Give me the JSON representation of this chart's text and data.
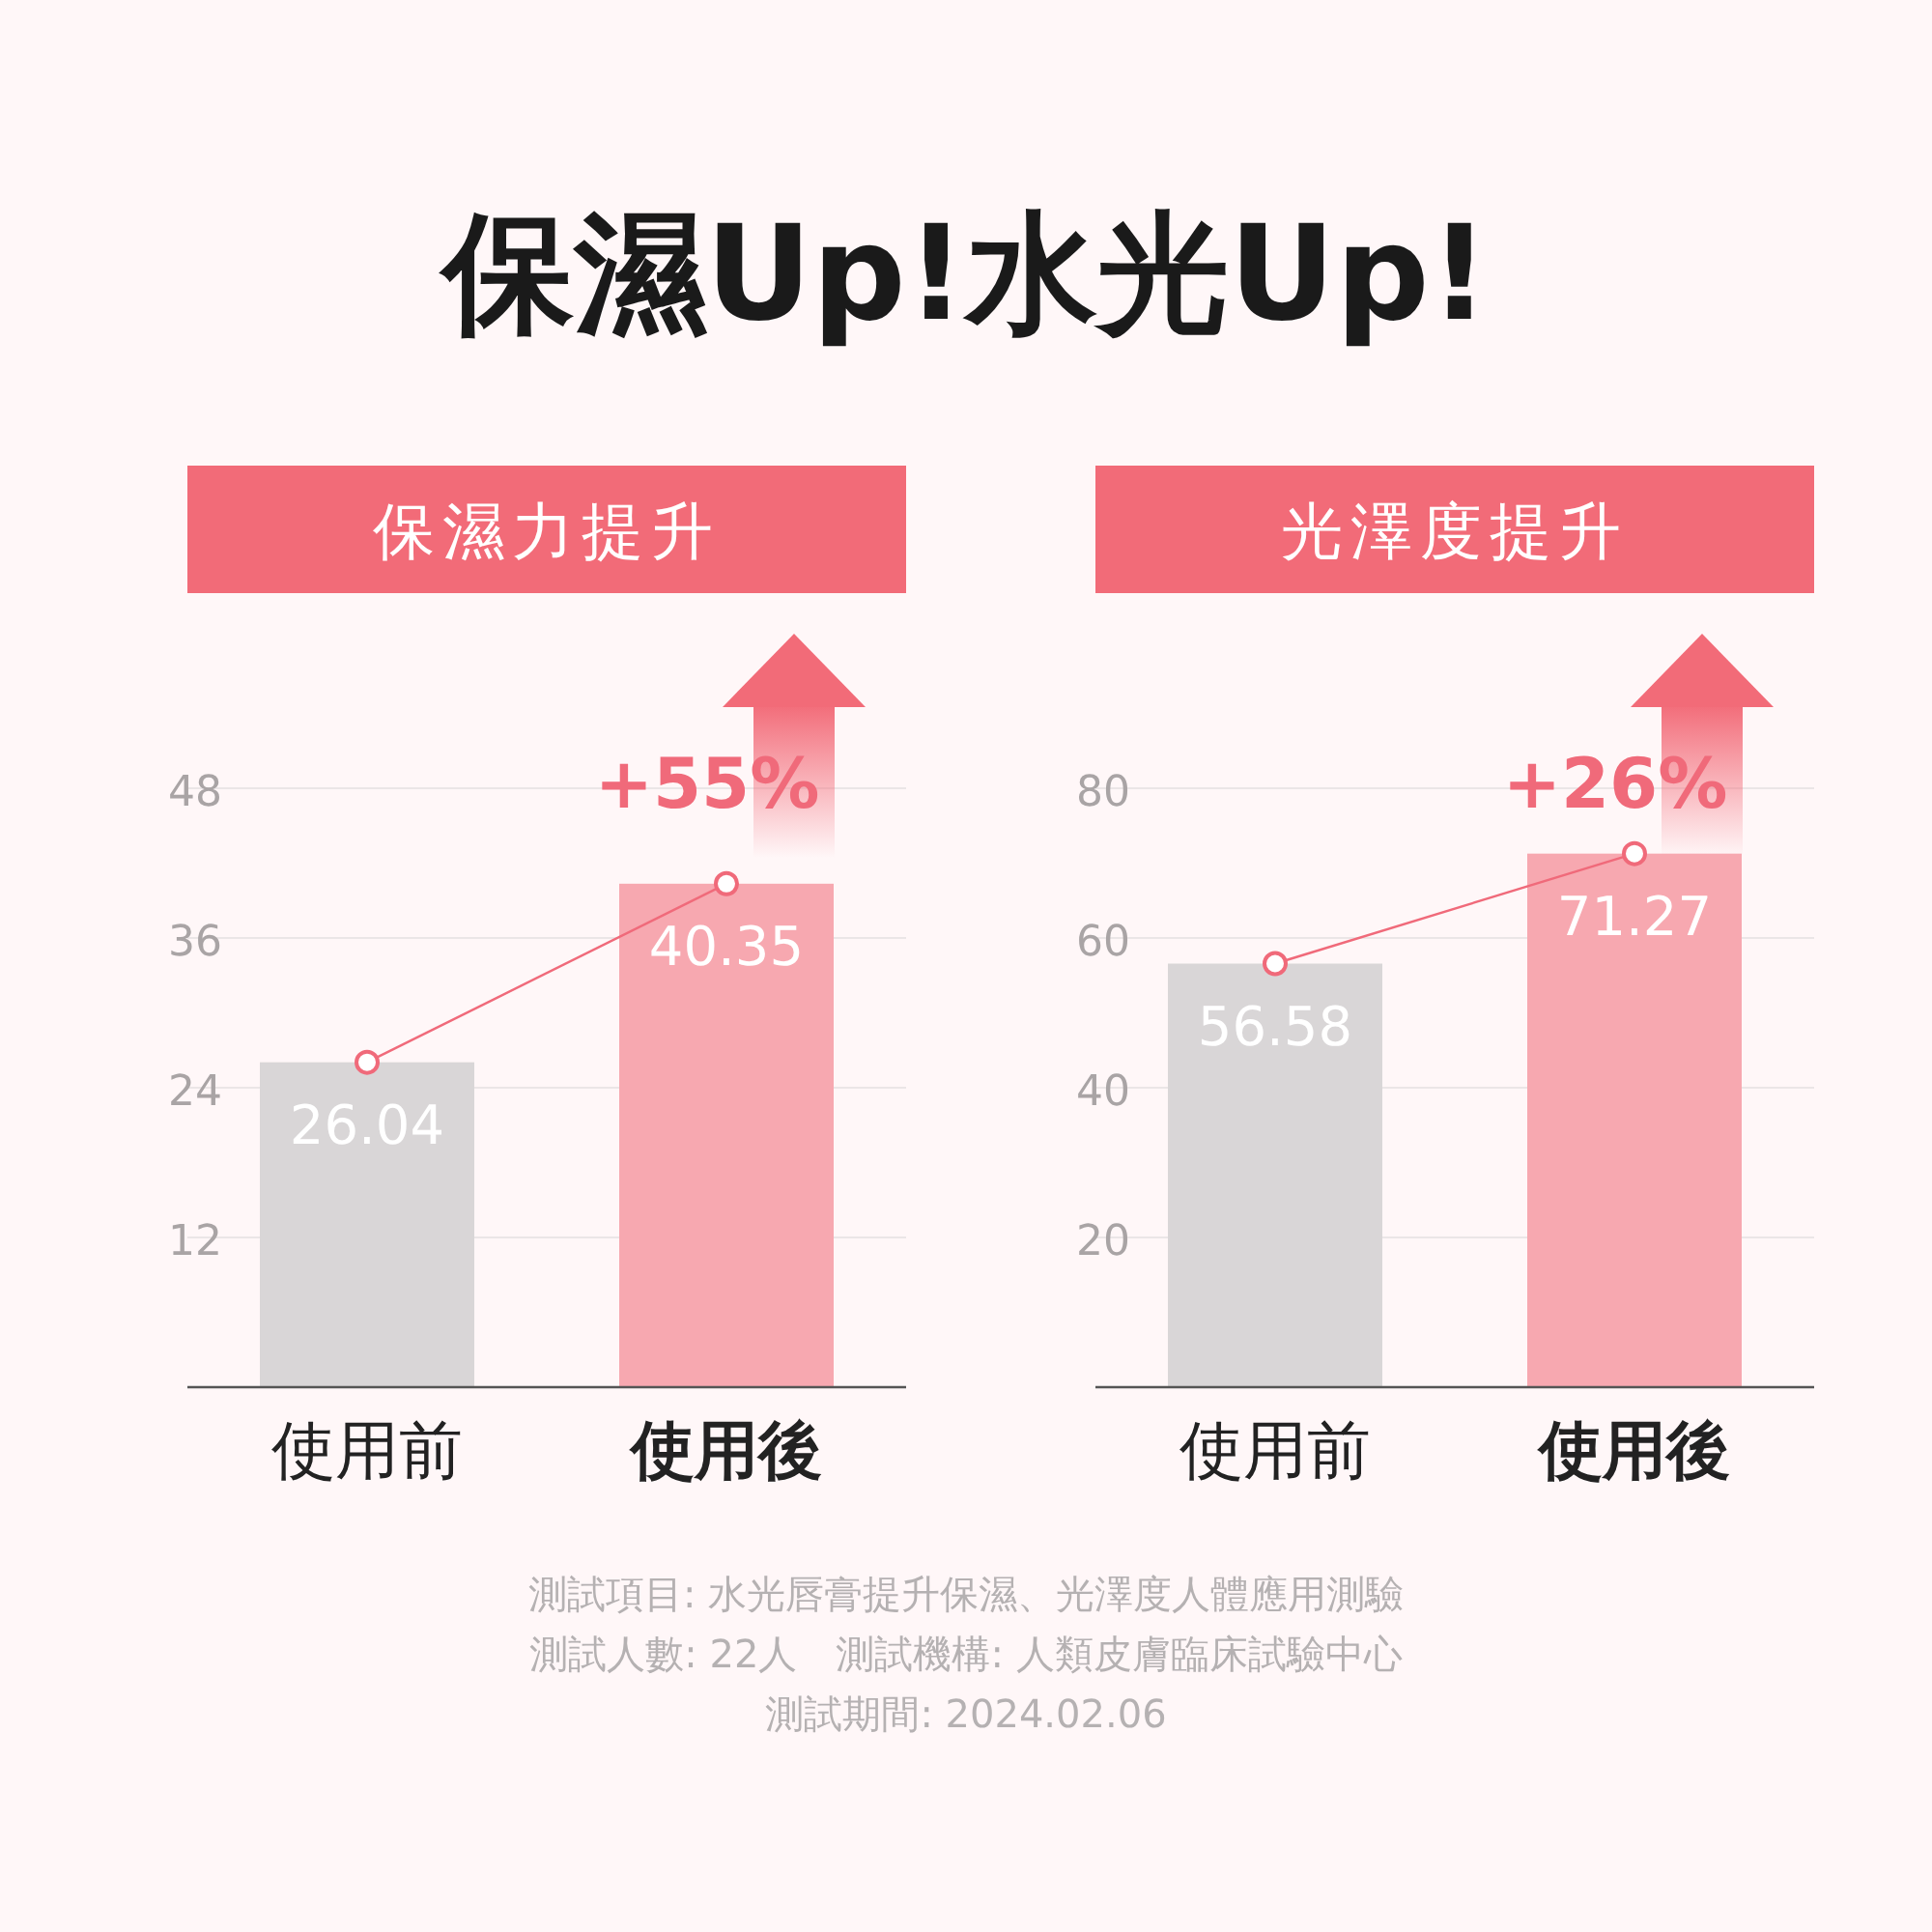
{
  "chart_data": [
    {
      "type": "other",
      "title": "保濕Up!水光Up!",
      "annotations": [
        "測試項目: 水光唇膏提升保濕、光澤度人體應用測驗",
        "測試人數: 22人　測試機構: 人類皮膚臨床試驗中心",
        "測試期間: 2024.02.06"
      ]
    },
    {
      "type": "bar",
      "title": "保濕力提升",
      "categories": [
        "使用前",
        "使用後"
      ],
      "ylim": [
        0,
        48
      ],
      "yticks": [
        12,
        24,
        36,
        48
      ],
      "grid": "y",
      "marker": "circle",
      "series": [
        {
          "type": "bar",
          "colors": [
            "#d9d6d7",
            "#f7a8b0"
          ],
          "values": [
            26.04,
            40.35
          ],
          "value_labels": [
            "26.04",
            "40.35"
          ]
        },
        {
          "type": "line",
          "color": "#f06a7a",
          "values": [
            26.04,
            40.35
          ]
        }
      ],
      "annotations": [
        "+55%"
      ]
    },
    {
      "type": "bar",
      "title": "光澤度提升",
      "categories": [
        "使用前",
        "使用後"
      ],
      "ylim": [
        0,
        80
      ],
      "yticks": [
        20,
        40,
        60,
        80
      ],
      "grid": "y",
      "marker": "circle",
      "series": [
        {
          "type": "bar",
          "colors": [
            "#d9d6d7",
            "#f7a8b0"
          ],
          "values": [
            56.58,
            71.27
          ],
          "value_labels": [
            "56.58",
            "71.27"
          ]
        },
        {
          "type": "line",
          "color": "#f06a7a",
          "values": [
            56.58,
            71.27
          ]
        }
      ],
      "annotations": [
        "+26%"
      ]
    }
  ]
}
